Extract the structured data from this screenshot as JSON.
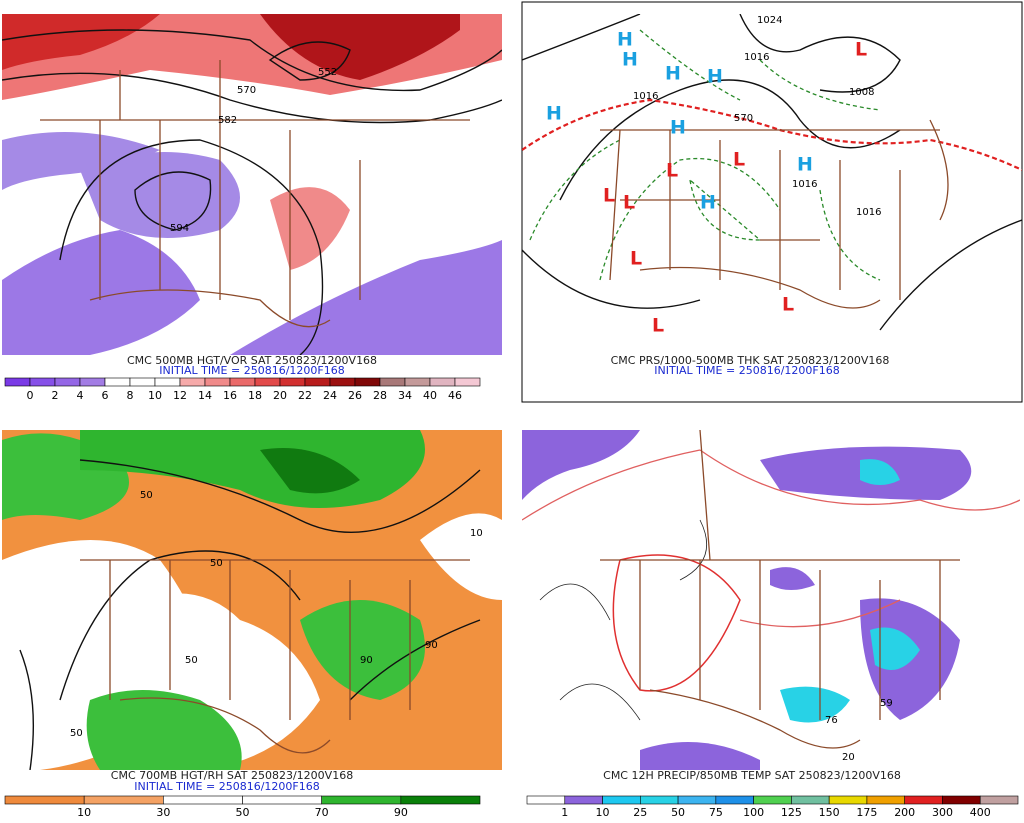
{
  "panels": [
    {
      "caption": "CMC 500MB HGT/VOR SAT 250823/1200V168",
      "initial": "INITIAL TIME = 250816/1200F168",
      "map_labels": [
        "570",
        "552",
        "582",
        "594"
      ],
      "colorbar": {
        "labels": [
          "0",
          "2",
          "4",
          "6",
          "8",
          "10",
          "12",
          "14",
          "16",
          "18",
          "20",
          "22",
          "24",
          "26",
          "28",
          "34",
          "40",
          "46"
        ],
        "colors": [
          "#7a3ae6",
          "#8650e8",
          "#9466e6",
          "#a27ce4",
          "#ffffff",
          "#ffffff",
          "#ffffff",
          "#f6aaaa",
          "#f08a8a",
          "#ea6a6a",
          "#e24a4a",
          "#d23030",
          "#b81c1c",
          "#9c1010",
          "#800808",
          "#a87878",
          "#c49a9a",
          "#e0b4c0",
          "#f4c8d4"
        ]
      }
    },
    {
      "caption": "CMC PRS/1000-500MB THK SAT 250823/1200V168",
      "initial": "INITIAL TIME = 250816/1200F168",
      "map_labels": [
        "1024",
        "1016",
        "1008",
        "570",
        "1016",
        "1016",
        "1016"
      ],
      "highs": [
        "H",
        "H",
        "H",
        "H",
        "H",
        "H",
        "H",
        "H"
      ],
      "lows": [
        "L",
        "L",
        "L",
        "L",
        "L",
        "L",
        "L",
        "L"
      ]
    },
    {
      "caption": "CMC 700MB HGT/RH SAT 250823/1200V168",
      "initial": "INITIAL TIME = 250816/1200F168",
      "map_labels": [
        "50",
        "50",
        "90",
        "10",
        "50",
        "90",
        "50"
      ],
      "colorbar": {
        "labels": [
          "10",
          "30",
          "50",
          "70",
          "90"
        ],
        "colors": [
          "#ef8a3c",
          "#f4a264",
          "#ffffff",
          "#ffffff",
          "#2fb52f",
          "#0a800a"
        ]
      }
    },
    {
      "caption": "CMC 12H PRECIP/850MB TEMP SAT 250823/1200V168",
      "map_labels": [
        "59",
        "20",
        "76"
      ],
      "colorbar": {
        "labels": [
          "1",
          "10",
          "25",
          "50",
          "75",
          "100",
          "125",
          "150",
          "175",
          "200",
          "300",
          "400"
        ],
        "colors": [
          "#ffffff",
          "#8c64dc",
          "#1ec8f0",
          "#28d2e6",
          "#3cb4f0",
          "#1e90e8",
          "#50d050",
          "#70c0a0",
          "#e8d800",
          "#f0a000",
          "#e02020",
          "#800000",
          "#c0a0a0"
        ]
      }
    }
  ]
}
